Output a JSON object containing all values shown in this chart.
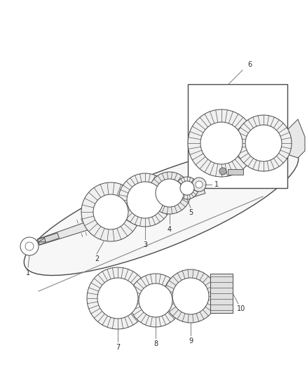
{
  "bg_color": "#ffffff",
  "line_color": "#4a4a4a",
  "label_color": "#2a2a2a",
  "fig_w": 4.38,
  "fig_h": 5.33,
  "dpi": 100,
  "shaft_color": "#e8e8e8",
  "gear_fill": "#f0f0f0",
  "gear_teeth_color": "#555555",
  "box_fill": "#ffffff",
  "oval_fill": "#f5f5f5",
  "label_fontsize": 7.0,
  "lw_main": 1.0,
  "lw_thin": 0.7,
  "lw_teeth": 0.5
}
